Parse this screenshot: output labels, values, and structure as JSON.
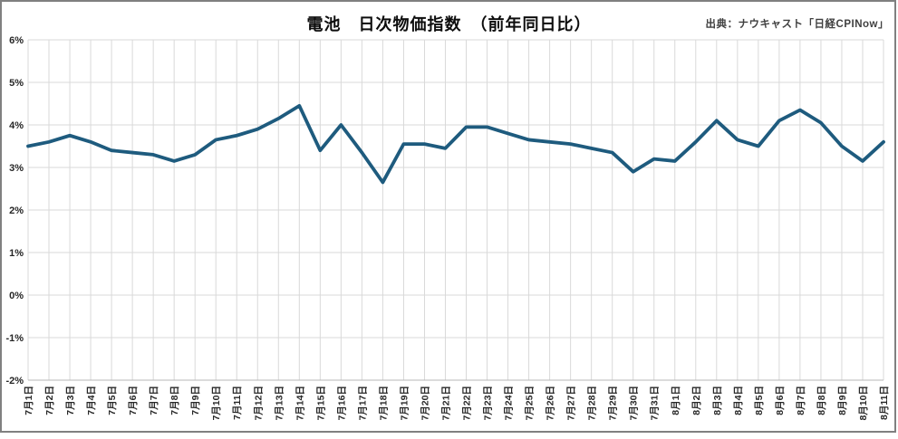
{
  "chart_data": {
    "type": "line",
    "title": "電池　日次物価指数　（前年同日比）",
    "source": "出典：ナウキャスト「日経CPINow」",
    "ylabel": "",
    "xlabel": "",
    "ylim": [
      -2,
      6
    ],
    "y_ticks": [
      "6%",
      "5%",
      "4%",
      "3%",
      "2%",
      "1%",
      "0%",
      "-1%",
      "-2%"
    ],
    "y_tick_values": [
      6,
      5,
      4,
      3,
      2,
      1,
      0,
      -1,
      -2
    ],
    "grid": true,
    "legend": "none",
    "line_color": "#1E5B7E",
    "gridline_color": "#d9d9d9",
    "axis_line_color": "#b7b7b7",
    "categories": [
      "7月1日",
      "7月2日",
      "7月3日",
      "7月4日",
      "7月5日",
      "7月6日",
      "7月7日",
      "7月8日",
      "7月9日",
      "7月10日",
      "7月11日",
      "7月12日",
      "7月13日",
      "7月14日",
      "7月15日",
      "7月16日",
      "7月17日",
      "7月18日",
      "7月19日",
      "7月20日",
      "7月21日",
      "7月22日",
      "7月23日",
      "7月24日",
      "7月25日",
      "7月26日",
      "7月27日",
      "7月28日",
      "7月29日",
      "7月30日",
      "7月31日",
      "8月1日",
      "8月2日",
      "8月3日",
      "8月4日",
      "8月5日",
      "8月6日",
      "8月7日",
      "8月8日",
      "8月9日",
      "8月10日",
      "8月11日"
    ],
    "values": [
      3.5,
      3.6,
      3.75,
      3.6,
      3.4,
      3.35,
      3.3,
      3.15,
      3.3,
      3.65,
      3.75,
      3.9,
      4.15,
      4.45,
      3.4,
      4.0,
      3.35,
      2.65,
      3.55,
      3.55,
      3.45,
      3.95,
      3.95,
      3.8,
      3.65,
      3.6,
      3.55,
      3.45,
      3.35,
      2.9,
      3.2,
      3.15,
      3.6,
      4.1,
      3.65,
      3.5,
      4.1,
      4.35,
      4.05,
      3.5,
      3.15,
      3.6
    ]
  }
}
